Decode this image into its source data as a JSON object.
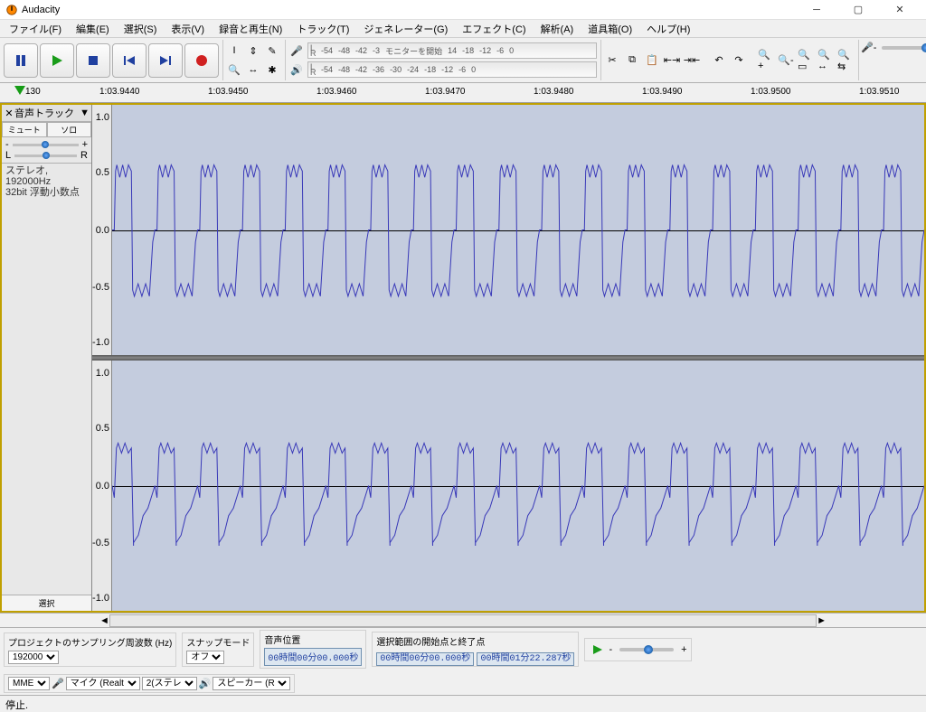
{
  "app": {
    "title": "Audacity"
  },
  "menu": [
    "ファイル(F)",
    "編集(E)",
    "選択(S)",
    "表示(V)",
    "録音と再生(N)",
    "トラック(T)",
    "ジェネレーター(G)",
    "エフェクト(C)",
    "解析(A)",
    "道具箱(O)",
    "ヘルプ(H)"
  ],
  "meter": {
    "monitor_text": "モニターを開始",
    "ticks_rec": [
      "-54",
      "-48",
      "-42",
      "-3",
      "14",
      "-18",
      "-12",
      "-6",
      "0"
    ],
    "ticks_play": [
      "-54",
      "-48",
      "-42",
      "-36",
      "-30",
      "-24",
      "-18",
      "-12",
      "-6",
      "0"
    ]
  },
  "timeline": {
    "start_label": "130",
    "labels": [
      "1:03.9440",
      "1:03.9450",
      "1:03.9460",
      "1:03.9470",
      "1:03.9480",
      "1:03.9490",
      "1:03.9500",
      "1:03.9510"
    ]
  },
  "track": {
    "name": "音声トラック",
    "mute": "ミュート",
    "solo": "ソロ",
    "gain_minus": "-",
    "gain_plus": "+",
    "pan_l": "L",
    "pan_r": "R",
    "info1": "ステレオ, 192000Hz",
    "info2": "32bit 浮動小数点",
    "select_btn": "選択"
  },
  "amp_scale": [
    "1.0",
    "0.5",
    "0.0",
    "-0.5",
    "-1.0"
  ],
  "waveform": {
    "type": "audio-waveform",
    "color": "#3838b8",
    "background": "#c4ccde",
    "zero_color": "#000000",
    "cycles": 19,
    "channel1": {
      "amp_high": 0.47,
      "amp_low": -0.48,
      "ripple": 0.05,
      "shape": "square-ripple"
    },
    "channel2": {
      "amp_high": 0.3,
      "amp_low": -0.48,
      "ripple": 0.04,
      "shape": "saw-square"
    }
  },
  "bottom": {
    "sample_rate_label": "プロジェクトのサンプリング周波数 (Hz)",
    "sample_rate": "192000",
    "snap_label": "スナップモード",
    "snap_value": "オフ",
    "pos_label": "音声位置",
    "pos_value": "00時間00分00.000秒",
    "sel_label": "選択範囲の開始点と終了点",
    "sel_start": "00時間00分00.000秒",
    "sel_end": "00時間01分22.287秒",
    "host": "MME",
    "rec_dev": "マイク (Realt",
    "rec_ch": "2(ステレ",
    "play_dev": "スピーカー (R"
  },
  "status": "停止."
}
